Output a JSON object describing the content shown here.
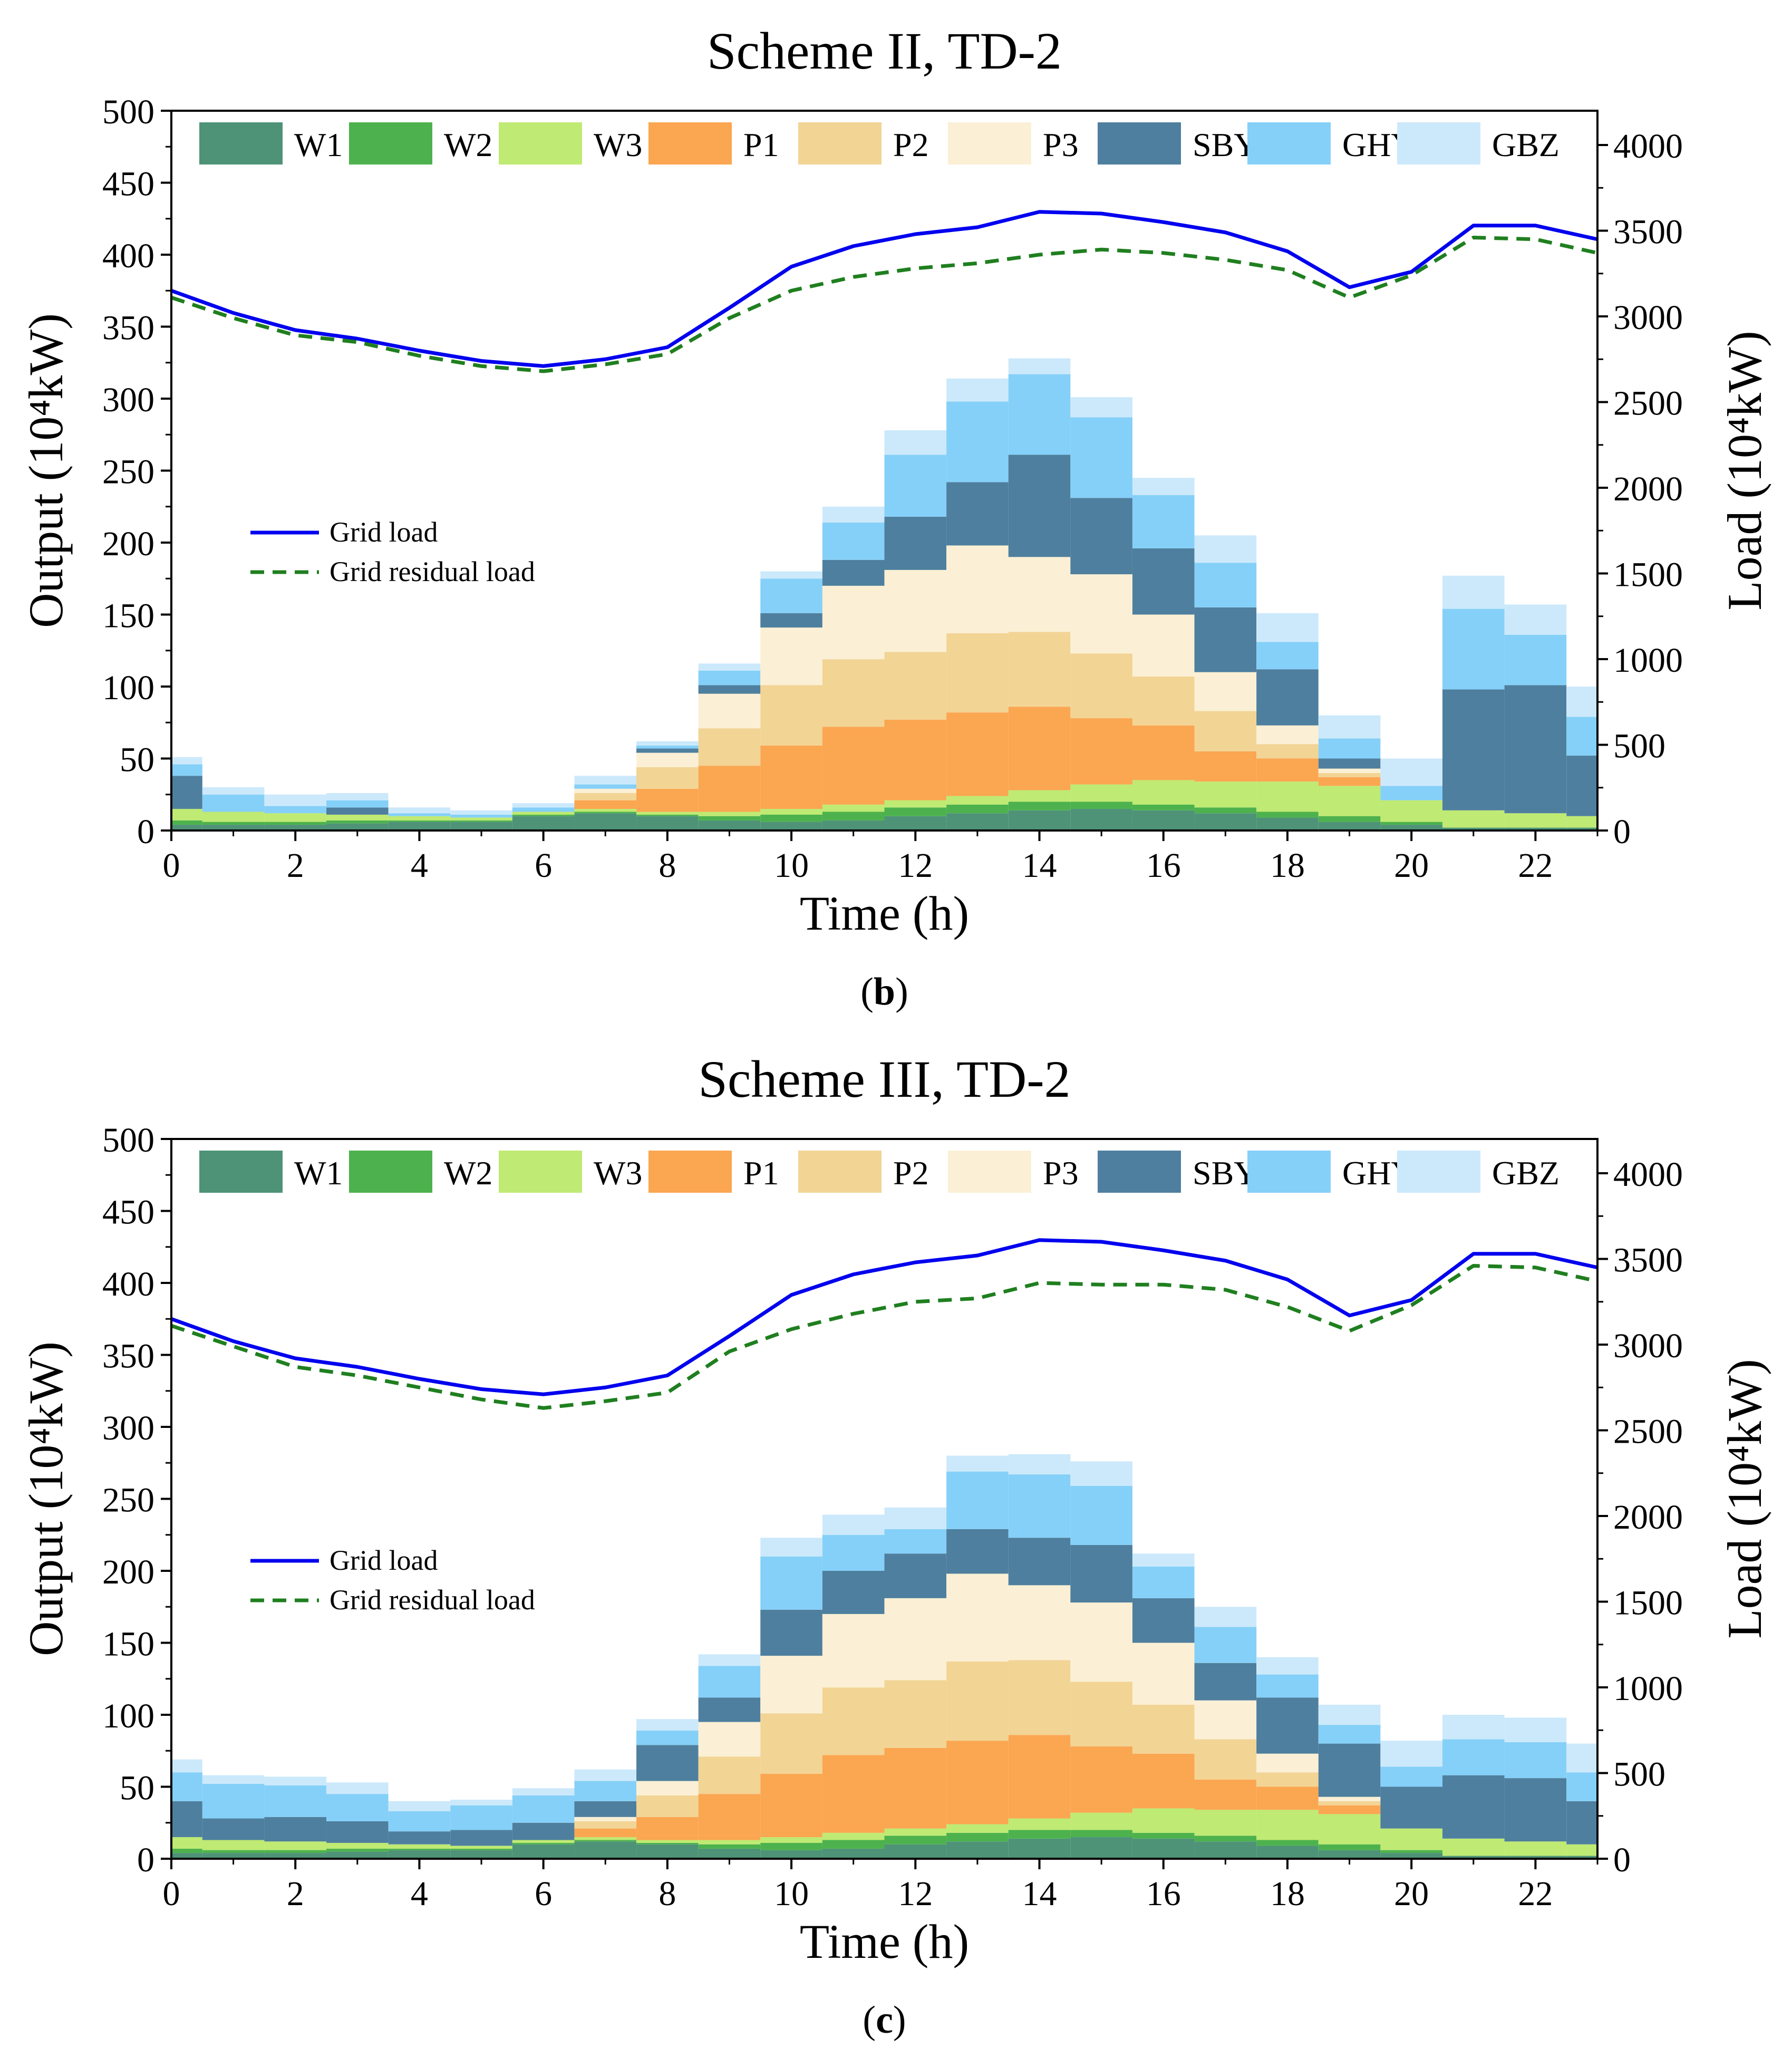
{
  "chart_data": [
    {
      "type": "bar",
      "stacked": true,
      "title": "Scheme II, TD-2",
      "caption": "b",
      "xlabel": "Time (h)",
      "ylabel": "Output (10⁴kW)",
      "y2label": "Load (10⁴kW)",
      "xlim": [
        0,
        23
      ],
      "ylim": [
        0,
        500
      ],
      "y2lim": [
        0,
        4200
      ],
      "xticks": [
        "0",
        "2",
        "4",
        "6",
        "8",
        "10",
        "12",
        "14",
        "16",
        "18",
        "20",
        "22"
      ],
      "yticks": [
        "0",
        "50",
        "100",
        "150",
        "200",
        "250",
        "300",
        "350",
        "400",
        "450",
        "500"
      ],
      "y2ticks": [
        "0",
        "500",
        "1000",
        "1500",
        "2000",
        "2500",
        "3000",
        "3500",
        "4000"
      ],
      "hours": [
        0,
        1,
        2,
        3,
        4,
        5,
        6,
        7,
        8,
        9,
        10,
        11,
        12,
        13,
        14,
        15,
        16,
        17,
        18,
        19,
        20,
        21,
        22,
        23
      ],
      "series": [
        {
          "name": "W1",
          "color": "#4e9377",
          "values": [
            4,
            4,
            4,
            5,
            6,
            6,
            10,
            12,
            10,
            7,
            6,
            7,
            10,
            12,
            14,
            15,
            14,
            12,
            9,
            6,
            4,
            2,
            2,
            2
          ]
        },
        {
          "name": "W2",
          "color": "#4db24d",
          "values": [
            3,
            2,
            2,
            2,
            1,
            1,
            1,
            1,
            1,
            3,
            5,
            6,
            6,
            6,
            6,
            5,
            4,
            4,
            4,
            4,
            2,
            0,
            0,
            0
          ]
        },
        {
          "name": "W3",
          "color": "#bfea73",
          "values": [
            8,
            7,
            6,
            4,
            3,
            2,
            2,
            2,
            2,
            3,
            4,
            5,
            5,
            6,
            8,
            12,
            17,
            18,
            21,
            21,
            15,
            12,
            10,
            8
          ]
        },
        {
          "name": "P1",
          "color": "#fba651",
          "values": [
            0,
            0,
            0,
            0,
            0,
            0,
            0,
            6,
            16,
            32,
            44,
            54,
            56,
            58,
            58,
            46,
            38,
            21,
            16,
            6,
            0,
            0,
            0,
            0
          ]
        },
        {
          "name": "P2",
          "color": "#f2d495",
          "values": [
            0,
            0,
            0,
            0,
            0,
            0,
            0,
            5,
            15,
            26,
            42,
            47,
            47,
            55,
            52,
            45,
            34,
            28,
            10,
            3,
            0,
            0,
            0,
            0
          ]
        },
        {
          "name": "P3",
          "color": "#fbf0d5",
          "values": [
            0,
            0,
            0,
            0,
            0,
            0,
            0,
            3,
            10,
            24,
            40,
            51,
            57,
            61,
            52,
            55,
            43,
            27,
            13,
            3,
            0,
            0,
            0,
            0
          ]
        },
        {
          "name": "SBY",
          "color": "#4f7f9e",
          "values": [
            23,
            0,
            0,
            5,
            0,
            0,
            0,
            0,
            3,
            6,
            10,
            18,
            37,
            44,
            71,
            53,
            46,
            45,
            39,
            7,
            0,
            84,
            89,
            42
          ]
        },
        {
          "name": "GHY",
          "color": "#85d0f8",
          "values": [
            8,
            12,
            5,
            5,
            2,
            2,
            3,
            3,
            2,
            10,
            24,
            26,
            43,
            56,
            56,
            56,
            37,
            31,
            19,
            14,
            10,
            56,
            35,
            27
          ]
        },
        {
          "name": "GBZ",
          "color": "#cce9fb",
          "values": [
            5,
            5,
            8,
            5,
            4,
            3,
            3,
            6,
            3,
            5,
            5,
            11,
            17,
            16,
            11,
            14,
            12,
            19,
            20,
            16,
            19,
            23,
            21,
            21
          ]
        }
      ],
      "lines": [
        {
          "name": "Grid load",
          "color": "#0000ee",
          "dash": "solid",
          "values": [
            3150,
            3020,
            2920,
            2870,
            2800,
            2740,
            2710,
            2750,
            2820,
            3050,
            3290,
            3410,
            3480,
            3520,
            3610,
            3600,
            3550,
            3490,
            3380,
            3170,
            3260,
            3530,
            3530,
            3450
          ]
        },
        {
          "name": "Grid residual load",
          "color": "#1f7f1f",
          "dash": "dashed",
          "values": [
            3110,
            2990,
            2890,
            2850,
            2770,
            2710,
            2680,
            2720,
            2780,
            2990,
            3150,
            3230,
            3280,
            3310,
            3360,
            3390,
            3370,
            3330,
            3270,
            3110,
            3240,
            3460,
            3450,
            3370
          ]
        }
      ]
    },
    {
      "type": "bar",
      "stacked": true,
      "title": "Scheme III, TD-2",
      "caption": "c",
      "xlabel": "Time (h)",
      "ylabel": "Output (10⁴kW)",
      "y2label": "Load (10⁴kW)",
      "xlim": [
        0,
        23
      ],
      "ylim": [
        0,
        500
      ],
      "y2lim": [
        0,
        4200
      ],
      "xticks": [
        "0",
        "2",
        "4",
        "6",
        "8",
        "10",
        "12",
        "14",
        "16",
        "18",
        "20",
        "22"
      ],
      "yticks": [
        "0",
        "50",
        "100",
        "150",
        "200",
        "250",
        "300",
        "350",
        "400",
        "450",
        "500"
      ],
      "y2ticks": [
        "0",
        "500",
        "1000",
        "1500",
        "2000",
        "2500",
        "3000",
        "3500",
        "4000"
      ],
      "hours": [
        0,
        1,
        2,
        3,
        4,
        5,
        6,
        7,
        8,
        9,
        10,
        11,
        12,
        13,
        14,
        15,
        16,
        17,
        18,
        19,
        20,
        21,
        22,
        23
      ],
      "series": [
        {
          "name": "W1",
          "color": "#4e9377",
          "values": [
            4,
            4,
            4,
            5,
            6,
            6,
            10,
            12,
            10,
            7,
            6,
            7,
            10,
            12,
            14,
            15,
            14,
            12,
            9,
            6,
            4,
            2,
            2,
            2
          ]
        },
        {
          "name": "W2",
          "color": "#4db24d",
          "values": [
            3,
            2,
            2,
            2,
            1,
            1,
            1,
            1,
            1,
            3,
            5,
            6,
            6,
            6,
            6,
            5,
            4,
            4,
            4,
            4,
            2,
            0,
            0,
            0
          ]
        },
        {
          "name": "W3",
          "color": "#bfea73",
          "values": [
            8,
            7,
            6,
            4,
            3,
            2,
            2,
            2,
            2,
            3,
            4,
            5,
            5,
            6,
            8,
            12,
            17,
            18,
            21,
            21,
            15,
            12,
            10,
            8
          ]
        },
        {
          "name": "P1",
          "color": "#fba651",
          "values": [
            0,
            0,
            0,
            0,
            0,
            0,
            0,
            6,
            16,
            32,
            44,
            54,
            56,
            58,
            58,
            46,
            38,
            21,
            16,
            6,
            0,
            0,
            0,
            0
          ]
        },
        {
          "name": "P2",
          "color": "#f2d495",
          "values": [
            0,
            0,
            0,
            0,
            0,
            0,
            0,
            5,
            15,
            26,
            42,
            47,
            47,
            55,
            52,
            45,
            34,
            28,
            10,
            3,
            0,
            0,
            0,
            0
          ]
        },
        {
          "name": "P3",
          "color": "#fbf0d5",
          "values": [
            0,
            0,
            0,
            0,
            0,
            0,
            0,
            3,
            10,
            24,
            40,
            51,
            57,
            61,
            52,
            55,
            43,
            27,
            13,
            3,
            0,
            0,
            0,
            0
          ]
        },
        {
          "name": "SBY",
          "color": "#4f7f9e",
          "values": [
            25,
            15,
            17,
            15,
            9,
            11,
            12,
            11,
            25,
            17,
            32,
            30,
            31,
            31,
            33,
            40,
            31,
            26,
            39,
            37,
            29,
            44,
            44,
            30
          ]
        },
        {
          "name": "GHY",
          "color": "#85d0f8",
          "values": [
            20,
            24,
            22,
            19,
            14,
            17,
            19,
            14,
            10,
            22,
            37,
            25,
            17,
            40,
            44,
            41,
            22,
            25,
            16,
            13,
            14,
            25,
            25,
            20
          ]
        },
        {
          "name": "GBZ",
          "color": "#cce9fb",
          "values": [
            9,
            6,
            6,
            8,
            7,
            4,
            5,
            8,
            8,
            8,
            13,
            14,
            15,
            11,
            14,
            17,
            9,
            14,
            12,
            14,
            18,
            17,
            17,
            20
          ]
        }
      ],
      "lines": [
        {
          "name": "Grid load",
          "color": "#0000ee",
          "dash": "solid",
          "values": [
            3150,
            3020,
            2920,
            2870,
            2800,
            2740,
            2710,
            2750,
            2820,
            3050,
            3290,
            3410,
            3480,
            3520,
            3610,
            3600,
            3550,
            3490,
            3380,
            3170,
            3260,
            3530,
            3530,
            3450
          ]
        },
        {
          "name": "Grid residual load",
          "color": "#1f7f1f",
          "dash": "dashed",
          "values": [
            3110,
            2990,
            2870,
            2820,
            2750,
            2680,
            2630,
            2670,
            2720,
            2960,
            3090,
            3180,
            3250,
            3270,
            3360,
            3350,
            3350,
            3320,
            3220,
            3080,
            3230,
            3460,
            3450,
            3370
          ]
        }
      ]
    }
  ]
}
